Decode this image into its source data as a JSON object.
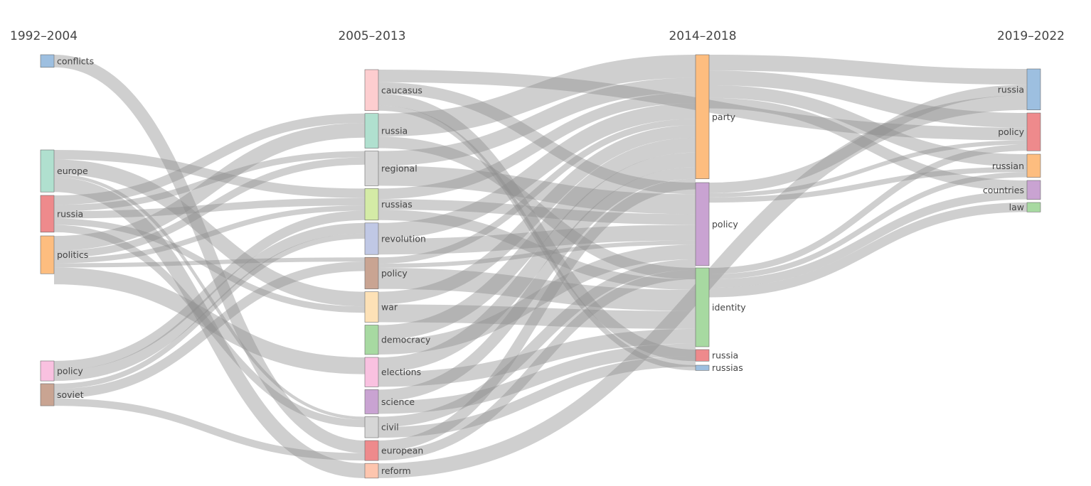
{
  "colors": {
    "link": "#8c8c8c",
    "blue": "#9dbfe0",
    "teal": "#b0e0cf",
    "red": "#ee8a8c",
    "orange": "#fdbd7f",
    "pink": "#f9c1e0",
    "brown": "#c9a492",
    "lightpink": "#fdcdcf",
    "gray": "#d6d6d6",
    "lime": "#d4eba6",
    "lavender": "#c0c8e5",
    "peach": "#fde1b6",
    "green": "#a7d9a1",
    "purple": "#c9a3d2",
    "salmon": "#fdc5ae"
  },
  "chart_data": {
    "type": "sankey",
    "columns": [
      {
        "title": "1992–2004",
        "nodes": [
          {
            "id": "c0_conflicts",
            "label": "conflicts",
            "value": 1.2,
            "color": "blue"
          },
          {
            "id": "c0_europe",
            "label": "europe",
            "value": 4.0,
            "color": "teal"
          },
          {
            "id": "c0_russia",
            "label": "russia",
            "value": 3.5,
            "color": "red"
          },
          {
            "id": "c0_politics",
            "label": "politics",
            "value": 3.6,
            "color": "orange"
          },
          {
            "id": "c0_policy",
            "label": "policy",
            "value": 1.9,
            "color": "pink"
          },
          {
            "id": "c0_soviet",
            "label": "soviet",
            "value": 2.1,
            "color": "brown"
          }
        ]
      },
      {
        "title": "2005–2013",
        "nodes": [
          {
            "id": "c1_caucasus",
            "label": "caucasus",
            "value": 3.9,
            "color": "lightpink"
          },
          {
            "id": "c1_russia",
            "label": "russia",
            "value": 3.3,
            "color": "teal"
          },
          {
            "id": "c1_regional",
            "label": "regional",
            "value": 3.3,
            "color": "gray"
          },
          {
            "id": "c1_russias",
            "label": "russias",
            "value": 3.0,
            "color": "lime"
          },
          {
            "id": "c1_revolution",
            "label": "revolution",
            "value": 3.0,
            "color": "lavender"
          },
          {
            "id": "c1_policy",
            "label": "policy",
            "value": 3.0,
            "color": "brown"
          },
          {
            "id": "c1_war",
            "label": "war",
            "value": 2.9,
            "color": "peach"
          },
          {
            "id": "c1_democracy",
            "label": "democracy",
            "value": 2.8,
            "color": "green"
          },
          {
            "id": "c1_elections",
            "label": "elections",
            "value": 2.8,
            "color": "pink"
          },
          {
            "id": "c1_science",
            "label": "science",
            "value": 2.3,
            "color": "purple"
          },
          {
            "id": "c1_civil",
            "label": "civil",
            "value": 2.0,
            "color": "gray"
          },
          {
            "id": "c1_european",
            "label": "european",
            "value": 1.9,
            "color": "red"
          },
          {
            "id": "c1_reform",
            "label": "reform",
            "value": 1.4,
            "color": "salmon"
          }
        ]
      },
      {
        "title": "2014–2018",
        "nodes": [
          {
            "id": "c2_party",
            "label": "party",
            "value": 11.8,
            "color": "orange"
          },
          {
            "id": "c2_policy",
            "label": "policy",
            "value": 7.9,
            "color": "purple"
          },
          {
            "id": "c2_identity",
            "label": "identity",
            "value": 7.5,
            "color": "green"
          },
          {
            "id": "c2_russia",
            "label": "russia",
            "value": 1.1,
            "color": "red"
          },
          {
            "id": "c2_russias",
            "label": "russias",
            "value": 0.5,
            "color": "blue"
          }
        ]
      },
      {
        "title": "2019–2022",
        "nodes": [
          {
            "id": "c3_russia",
            "label": "russia",
            "value": 3.9,
            "color": "blue"
          },
          {
            "id": "c3_policy",
            "label": "policy",
            "value": 3.6,
            "color": "red"
          },
          {
            "id": "c3_russian",
            "label": "russian",
            "value": 2.2,
            "color": "orange"
          },
          {
            "id": "c3_countries",
            "label": "countries",
            "value": 1.8,
            "color": "purple"
          },
          {
            "id": "c3_law",
            "label": "law",
            "value": 0.9,
            "color": "green"
          }
        ]
      }
    ],
    "links": [
      {
        "source": "c0_conflicts",
        "target": "c1_european",
        "value": 1.2
      },
      {
        "source": "c0_europe",
        "target": "c1_russias",
        "value": 0.9
      },
      {
        "source": "c0_europe",
        "target": "c1_war",
        "value": 1.4
      },
      {
        "source": "c0_europe",
        "target": "c1_civil",
        "value": 0.3
      },
      {
        "source": "c0_europe",
        "target": "c1_reform",
        "value": 1.4
      },
      {
        "source": "c0_russia",
        "target": "c1_russia",
        "value": 0.9
      },
      {
        "source": "c0_russia",
        "target": "c1_regional",
        "value": 0.6
      },
      {
        "source": "c0_russia",
        "target": "c1_russias",
        "value": 0.7
      },
      {
        "source": "c0_russia",
        "target": "c1_war",
        "value": 0.6
      },
      {
        "source": "c0_russia",
        "target": "c1_civil",
        "value": 0.7
      },
      {
        "source": "c0_politics",
        "target": "c1_russia",
        "value": 1.4
      },
      {
        "source": "c0_politics",
        "target": "c1_regional",
        "value": 0.7
      },
      {
        "source": "c0_politics",
        "target": "c1_russias",
        "value": 0.5
      },
      {
        "source": "c0_politics",
        "target": "c1_policy",
        "value": 0.4
      },
      {
        "source": "c0_politics",
        "target": "c1_elections",
        "value": 1.6
      },
      {
        "source": "c0_policy",
        "target": "c1_russias",
        "value": 0.9
      },
      {
        "source": "c0_policy",
        "target": "c1_revolution",
        "value": 1.0
      },
      {
        "source": "c0_soviet",
        "target": "c1_revolution",
        "value": 0.5
      },
      {
        "source": "c0_soviet",
        "target": "c1_policy",
        "value": 0.9
      },
      {
        "source": "c0_soviet",
        "target": "c1_european",
        "value": 0.7
      },
      {
        "source": "c1_caucasus",
        "target": "c3_policy",
        "value": 1.2
      },
      {
        "source": "c1_caucasus",
        "target": "c2_policy",
        "value": 1.1
      },
      {
        "source": "c1_caucasus",
        "target": "c2_russia",
        "value": 1.1
      },
      {
        "source": "c1_caucasus",
        "target": "c2_russias",
        "value": 0.5
      },
      {
        "source": "c1_russia",
        "target": "c2_party",
        "value": 2.2
      },
      {
        "source": "c1_russia",
        "target": "c2_identity",
        "value": 1.1
      },
      {
        "source": "c1_regional",
        "target": "c2_party",
        "value": 1.4
      },
      {
        "source": "c1_regional",
        "target": "c2_policy",
        "value": 1.9
      },
      {
        "source": "c1_russias",
        "target": "c2_party",
        "value": 1.0
      },
      {
        "source": "c1_russias",
        "target": "c2_policy",
        "value": 1.0
      },
      {
        "source": "c1_russias",
        "target": "c2_identity",
        "value": 1.0
      },
      {
        "source": "c1_revolution",
        "target": "c2_party",
        "value": 1.5
      },
      {
        "source": "c1_revolution",
        "target": "c2_policy",
        "value": 1.5
      },
      {
        "source": "c1_policy",
        "target": "c2_party",
        "value": 0.6
      },
      {
        "source": "c1_policy",
        "target": "c2_policy",
        "value": 0.4
      },
      {
        "source": "c1_policy",
        "target": "c2_identity",
        "value": 2.0
      },
      {
        "source": "c1_war",
        "target": "c2_party",
        "value": 1.2
      },
      {
        "source": "c1_war",
        "target": "c2_identity",
        "value": 1.7
      },
      {
        "source": "c1_democracy",
        "target": "c2_party",
        "value": 1.4
      },
      {
        "source": "c1_democracy",
        "target": "c2_policy",
        "value": 1.4
      },
      {
        "source": "c1_elections",
        "target": "c2_party",
        "value": 1.4
      },
      {
        "source": "c1_elections",
        "target": "c2_identity",
        "value": 1.4
      },
      {
        "source": "c1_science",
        "target": "c2_party",
        "value": 1.1
      },
      {
        "source": "c1_science",
        "target": "c2_identity",
        "value": 1.2
      },
      {
        "source": "c1_civil",
        "target": "c2_policy",
        "value": 1.0
      },
      {
        "source": "c1_civil",
        "target": "c2_identity",
        "value": 1.0
      },
      {
        "source": "c1_european",
        "target": "c2_party",
        "value": 1.0
      },
      {
        "source": "c1_european",
        "target": "c2_policy",
        "value": 0.9
      },
      {
        "source": "c1_reform",
        "target": "c3_russia",
        "value": 1.4
      },
      {
        "source": "c2_party",
        "target": "c3_russia",
        "value": 1.5
      },
      {
        "source": "c2_party",
        "target": "c3_policy",
        "value": 1.4
      },
      {
        "source": "c2_party",
        "target": "c3_russian",
        "value": 1.2
      },
      {
        "source": "c2_party",
        "target": "c3_countries",
        "value": 1.0
      },
      {
        "source": "c2_policy",
        "target": "c3_russia",
        "value": 1.0
      },
      {
        "source": "c2_policy",
        "target": "c3_policy",
        "value": 0.4
      },
      {
        "source": "c2_policy",
        "target": "c3_russian",
        "value": 0.5
      },
      {
        "source": "c2_identity",
        "target": "c3_policy",
        "value": 0.6
      },
      {
        "source": "c2_identity",
        "target": "c3_russian",
        "value": 0.5
      },
      {
        "source": "c2_identity",
        "target": "c3_countries",
        "value": 0.8
      },
      {
        "source": "c2_identity",
        "target": "c3_law",
        "value": 0.9
      }
    ]
  }
}
